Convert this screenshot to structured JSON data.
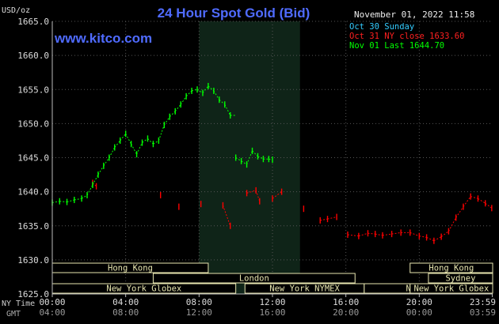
{
  "header": {
    "title": "24 Hour Spot Gold (Bid)",
    "date": "November 01, 2022 11:58",
    "website": "www.kitco.com",
    "unit": "USD/oz"
  },
  "legend": [
    {
      "text": "Oct 30 Sunday",
      "color": "#33ccff"
    },
    {
      "text": "Oct 31 NY close 1633.60",
      "color": "#ff0000"
    },
    {
      "text": "Nov 01 Last 1644.70",
      "color": "#00ff00"
    }
  ],
  "colors": {
    "background": "#000000",
    "grid": "#555555",
    "title": "#4f6bff",
    "session_bg": "#0f2418",
    "session_box": "#e8e6b0",
    "label": "#cccccc",
    "gmt_label": "#888888"
  },
  "sessions": [
    {
      "name": "Hong Kong",
      "start": 0,
      "end": 8.5
    },
    {
      "name": "London",
      "start": 5.5,
      "end": 16.5
    },
    {
      "name": "New York Globex",
      "start": 0,
      "end": 10.0
    },
    {
      "name": "New York NYMEX",
      "start": 10.5,
      "end": 17.0
    },
    {
      "name": "NY Globex",
      "start": 17.0,
      "end": 24.0
    },
    {
      "name": "Hong Kong",
      "start": 27.5,
      "end": 32.0
    },
    {
      "name": "Sydney",
      "start": 28.5,
      "end": 32.0
    },
    {
      "name": "New York Globex",
      "start": 27.5,
      "end": 32.0
    }
  ],
  "x_labels": {
    "ny_prefix": "NY Time",
    "gmt_prefix": "GMT",
    "ny_ticks": [
      "00:00",
      "04:00",
      "08:00",
      "12:00",
      "16:00",
      "20:00",
      "23:59"
    ],
    "gmt_ticks": [
      "04:00",
      "08:00",
      "12:00",
      "16:00",
      "20:00",
      "00:00",
      "03:59"
    ]
  },
  "chart_data": {
    "type": "line",
    "title": "24 Hour Spot Gold (Bid)",
    "ylabel": "USD/oz",
    "ylim": [
      1625.0,
      1665.0
    ],
    "yticks": [
      1625.0,
      1630.0,
      1635.0,
      1640.0,
      1645.0,
      1650.0,
      1655.0,
      1660.0,
      1665.0
    ],
    "xlim": [
      0,
      24
    ],
    "highlight_range": [
      8.0,
      13.5
    ],
    "series": [
      {
        "name": "Oct 31 NY close 1633.60",
        "color": "#ff0000",
        "x": [
          2.2,
          2.4,
          5.9,
          6.9,
          8.1,
          9.3,
          9.7,
          10.6,
          11.1,
          11.3,
          12.0,
          12.5,
          13.7,
          14.6,
          15.0,
          15.5,
          16.1,
          16.7,
          17.2,
          17.6,
          18.0,
          18.5,
          19.0,
          19.5,
          20.0,
          20.4,
          20.8,
          21.2,
          21.6,
          22.0,
          22.4,
          22.8,
          23.2,
          23.6,
          23.95
        ],
        "y": [
          1641.3,
          1640.8,
          1639.5,
          1637.8,
          1638.2,
          1638.0,
          1635.0,
          1639.8,
          1640.2,
          1638.6,
          1639.0,
          1640.0,
          1637.5,
          1635.8,
          1636.0,
          1636.3,
          1633.7,
          1633.5,
          1633.9,
          1633.8,
          1633.6,
          1633.8,
          1634.0,
          1634.0,
          1633.5,
          1633.3,
          1632.8,
          1633.4,
          1634.2,
          1636.2,
          1637.8,
          1639.3,
          1639.0,
          1638.3,
          1637.6
        ]
      },
      {
        "name": "Nov 01 Last 1644.70",
        "color": "#00ff00",
        "x": [
          0.0,
          0.4,
          0.8,
          1.2,
          1.6,
          1.9,
          2.2,
          2.5,
          2.8,
          3.1,
          3.4,
          3.7,
          4.0,
          4.3,
          4.6,
          4.9,
          5.2,
          5.5,
          5.8,
          6.1,
          6.4,
          6.7,
          7.0,
          7.3,
          7.6,
          7.9,
          8.2,
          8.5,
          8.8,
          9.1,
          9.4,
          9.7,
          10.0,
          10.3,
          10.6,
          10.9,
          11.2,
          11.5,
          11.8,
          12.0
        ],
        "y": [
          1638.4,
          1638.6,
          1638.5,
          1638.8,
          1639.0,
          1639.5,
          1641.0,
          1642.5,
          1643.8,
          1645.0,
          1646.5,
          1647.5,
          1648.5,
          1647.0,
          1645.5,
          1647.2,
          1647.8,
          1647.0,
          1647.5,
          1649.8,
          1651.0,
          1651.8,
          1652.8,
          1654.0,
          1654.8,
          1655.0,
          1654.5,
          1655.5,
          1654.8,
          1653.5,
          1652.8,
          1651.2,
          1645.0,
          1644.5,
          1644.0,
          1646.0,
          1645.2,
          1644.8,
          1644.8,
          1644.7
        ]
      }
    ]
  }
}
